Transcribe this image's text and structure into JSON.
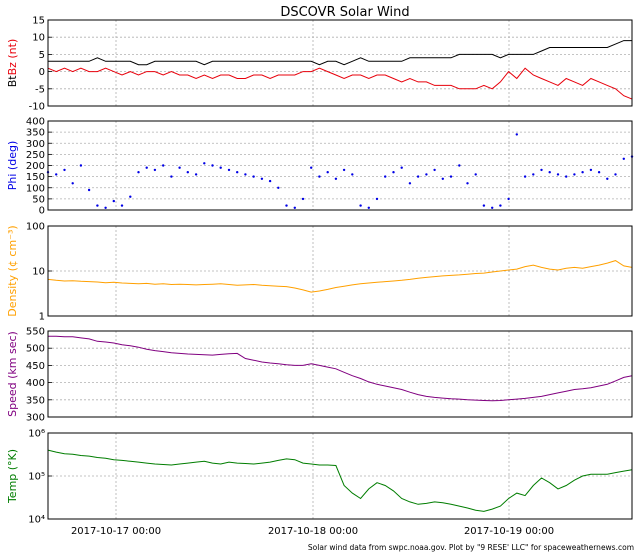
{
  "title": "DSCOVR Solar Wind",
  "credit": "Solar wind data from swpc.noaa.gov. Plot by \"9 RESE' LLC\" for spaceweathernews.com",
  "x_ticks": [
    "2017-10-17 00:00",
    "2017-10-18 00:00",
    "2017-10-19 00:00"
  ],
  "chart_data": [
    {
      "type": "line",
      "panel": "bt-bz",
      "ylabel_parts": [
        {
          "text": "Bt",
          "color": "#000000"
        },
        {
          "text": "Bz (nt)",
          "color": "#e8000b"
        }
      ],
      "ylim": [
        -10,
        15
      ],
      "yticks": [
        "-10",
        "-5",
        "0",
        "5",
        "10",
        "15"
      ],
      "grid": true,
      "series": [
        {
          "color": "#000000",
          "values": [
            3,
            3,
            3,
            3,
            3,
            3,
            4,
            3,
            3,
            3,
            3,
            2,
            2,
            3,
            3,
            3,
            3,
            3,
            3,
            2,
            3,
            3,
            3,
            3,
            3,
            3,
            3,
            3,
            3,
            3,
            3,
            3,
            3,
            2,
            3,
            3,
            2,
            3,
            4,
            3,
            3,
            3,
            3,
            3,
            4,
            4,
            4,
            4,
            4,
            4,
            5,
            5,
            5,
            5,
            5,
            4,
            5,
            5,
            5,
            5,
            6,
            7,
            7,
            7,
            7,
            7,
            7,
            7,
            7,
            8,
            9,
            9
          ]
        },
        {
          "color": "#e8000b",
          "values": [
            1,
            0,
            1,
            0,
            1,
            0,
            0,
            1,
            0,
            -1,
            0,
            -1,
            0,
            0,
            -1,
            0,
            -1,
            -1,
            -2,
            -1,
            -2,
            -1,
            -1,
            -2,
            -2,
            -1,
            -1,
            -2,
            -1,
            -1,
            -1,
            0,
            0,
            1,
            0,
            -1,
            -2,
            -1,
            -1,
            -2,
            -1,
            -1,
            -2,
            -3,
            -2,
            -3,
            -3,
            -4,
            -4,
            -4,
            -5,
            -5,
            -5,
            -4,
            -5,
            -3,
            0,
            -2,
            1,
            -1,
            -2,
            -3,
            -4,
            -2,
            -3,
            -4,
            -2,
            -3,
            -4,
            -5,
            -7,
            -8
          ]
        }
      ]
    },
    {
      "type": "scatter",
      "panel": "phi",
      "ylabel": "Phi (deg)",
      "ylabel_color": "#0000e6",
      "ylim": [
        0,
        400
      ],
      "yticks": [
        "0",
        "50",
        "100",
        "150",
        "200",
        "250",
        "300",
        "350",
        "400"
      ],
      "grid": true,
      "series": [
        {
          "color": "#0000e6",
          "values": [
            170,
            160,
            180,
            120,
            200,
            90,
            20,
            10,
            40,
            20,
            60,
            170,
            190,
            180,
            200,
            150,
            190,
            170,
            160,
            210,
            200,
            190,
            180,
            170,
            160,
            150,
            140,
            130,
            100,
            20,
            10,
            50,
            190,
            150,
            170,
            140,
            180,
            160,
            20,
            10,
            50,
            150,
            170,
            190,
            120,
            150,
            160,
            180,
            140,
            150,
            200,
            120,
            160,
            20,
            10,
            20,
            50,
            340,
            150,
            160,
            180,
            170,
            160,
            150,
            160,
            170,
            180,
            170,
            140,
            160,
            230,
            240
          ]
        }
      ]
    },
    {
      "type": "line",
      "panel": "density",
      "ylabel": "Density (¢ cm⁻³)",
      "ylabel_color": "#ffa000",
      "scale": "log",
      "ylim": [
        1,
        100
      ],
      "yticks": [
        "1",
        "10",
        "100"
      ],
      "grid": true,
      "series": [
        {
          "color": "#ffa000",
          "values": [
            6.5,
            6.2,
            6.0,
            6.1,
            5.9,
            5.8,
            5.7,
            5.5,
            5.6,
            5.4,
            5.3,
            5.2,
            5.3,
            5.1,
            5.2,
            5.0,
            5.1,
            5.0,
            4.9,
            5.0,
            5.1,
            5.2,
            5.0,
            4.8,
            4.9,
            5.0,
            4.8,
            4.7,
            4.6,
            4.5,
            4.2,
            3.8,
            3.4,
            3.6,
            3.9,
            4.3,
            4.6,
            4.9,
            5.2,
            5.4,
            5.6,
            5.8,
            6.0,
            6.2,
            6.5,
            6.9,
            7.2,
            7.5,
            7.8,
            8.0,
            8.2,
            8.5,
            8.8,
            9.0,
            9.5,
            10.0,
            10.5,
            11.0,
            12.5,
            13.5,
            12.0,
            11.0,
            10.5,
            11.5,
            12.0,
            11.5,
            12.5,
            13.5,
            15.0,
            17.0,
            13.0,
            12.0
          ]
        }
      ]
    },
    {
      "type": "line",
      "panel": "speed",
      "ylabel": "Speed (km sec)",
      "ylabel_color": "#800080",
      "ylim": [
        300,
        550
      ],
      "yticks": [
        "300",
        "350",
        "400",
        "450",
        "500",
        "550"
      ],
      "grid": true,
      "series": [
        {
          "color": "#800080",
          "values": [
            535,
            535,
            533,
            533,
            530,
            527,
            520,
            518,
            515,
            510,
            507,
            503,
            497,
            493,
            490,
            487,
            485,
            483,
            482,
            481,
            480,
            482,
            484,
            485,
            470,
            465,
            460,
            457,
            455,
            452,
            450,
            450,
            455,
            450,
            445,
            440,
            430,
            420,
            412,
            402,
            395,
            390,
            385,
            380,
            372,
            365,
            360,
            357,
            355,
            353,
            352,
            350,
            349,
            348,
            347,
            348,
            350,
            352,
            354,
            357,
            360,
            365,
            370,
            375,
            380,
            382,
            385,
            390,
            395,
            405,
            415,
            420
          ]
        }
      ]
    },
    {
      "type": "line",
      "panel": "temp",
      "ylabel": "Temp (°K)",
      "ylabel_color": "#007d00",
      "scale": "log",
      "ylim": [
        10000,
        1000000
      ],
      "yticks": [
        "10⁴",
        "10⁵",
        "10⁶"
      ],
      "grid": true,
      "series": [
        {
          "color": "#007d00",
          "values": [
            400000,
            360000,
            330000,
            320000,
            300000,
            290000,
            270000,
            260000,
            240000,
            230000,
            220000,
            210000,
            200000,
            190000,
            185000,
            180000,
            190000,
            200000,
            210000,
            220000,
            200000,
            190000,
            210000,
            200000,
            195000,
            190000,
            200000,
            210000,
            230000,
            250000,
            240000,
            200000,
            190000,
            180000,
            180000,
            175000,
            60000,
            40000,
            30000,
            50000,
            70000,
            60000,
            45000,
            30000,
            25000,
            22000,
            23000,
            25000,
            24000,
            22000,
            20000,
            18000,
            16000,
            15000,
            17000,
            20000,
            30000,
            40000,
            35000,
            60000,
            90000,
            70000,
            50000,
            60000,
            80000,
            100000,
            110000,
            110000,
            110000,
            120000,
            130000,
            140000
          ]
        }
      ]
    }
  ]
}
